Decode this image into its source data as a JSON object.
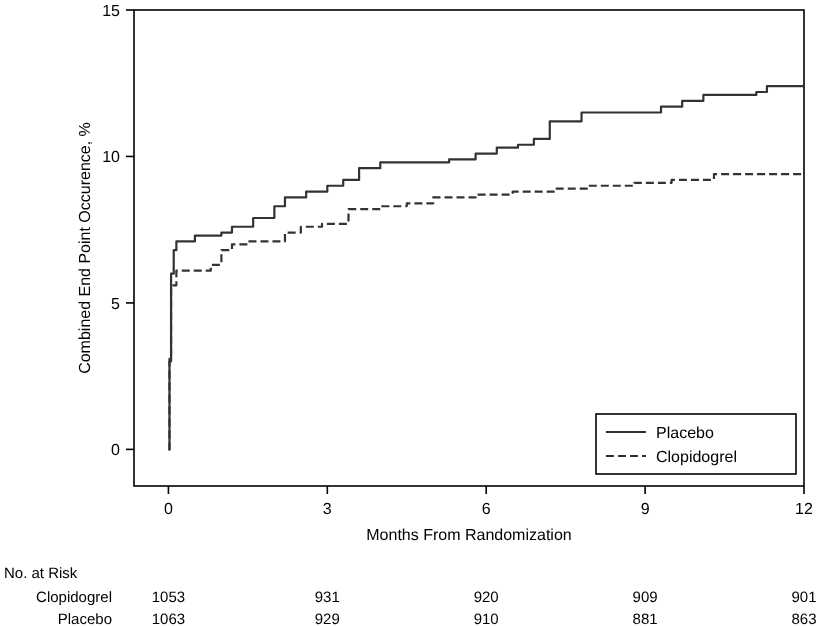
{
  "chart_data": {
    "type": "step",
    "xlabel": "Months From Randomization",
    "ylabel": "Combined End Point Occurence, %",
    "xlim": [
      -0.65,
      12
    ],
    "xticks": [
      0,
      3,
      6,
      9,
      12
    ],
    "ylim": [
      -1.25,
      15
    ],
    "yticks": [
      0,
      5,
      10,
      15
    ],
    "legend": "bottom right",
    "grid": false,
    "marker": "none",
    "series": [
      {
        "name": "Placebo",
        "color": "#333333",
        "line_style": "solid",
        "x": [
          0,
          0.02,
          0.05,
          0.1,
          0.15,
          0.5,
          1,
          1.2,
          1.6,
          2,
          2.2,
          2.6,
          3,
          3.3,
          3.6,
          4,
          5.3,
          5.8,
          6.2,
          6.6,
          6.9,
          7.2,
          7.8,
          9.3,
          9.7,
          10.1,
          11.1,
          11.3,
          12
        ],
        "values": [
          0,
          3,
          6,
          6.8,
          7.1,
          7.3,
          7.4,
          7.6,
          7.9,
          8.3,
          8.6,
          8.8,
          9,
          9.2,
          9.6,
          9.8,
          9.9,
          10.1,
          10.3,
          10.4,
          10.6,
          11.2,
          11.5,
          11.7,
          11.9,
          12.1,
          12.2,
          12.4,
          12.4
        ]
      },
      {
        "name": "Clopidogrel",
        "color": "#333333",
        "line_style": "dashed",
        "x": [
          0,
          0.02,
          0.05,
          0.15,
          0.8,
          1,
          1.2,
          1.5,
          2.2,
          2.5,
          2.9,
          3.4,
          4,
          4.5,
          5,
          5.8,
          6.5,
          7.3,
          7.9,
          8.8,
          9.5,
          10.3,
          12
        ],
        "values": [
          0,
          3.1,
          5.6,
          6.1,
          6.3,
          6.8,
          7,
          7.1,
          7.4,
          7.6,
          7.7,
          8.2,
          8.3,
          8.4,
          8.6,
          8.7,
          8.8,
          8.9,
          9,
          9.1,
          9.2,
          9.4,
          9.4
        ]
      }
    ],
    "annotations": [
      "No. at Risk",
      "Clopidogrel",
      "1053",
      "931",
      "920",
      "909",
      "901",
      "Placebo",
      "1063",
      "929",
      "910",
      "881",
      "863"
    ]
  }
}
